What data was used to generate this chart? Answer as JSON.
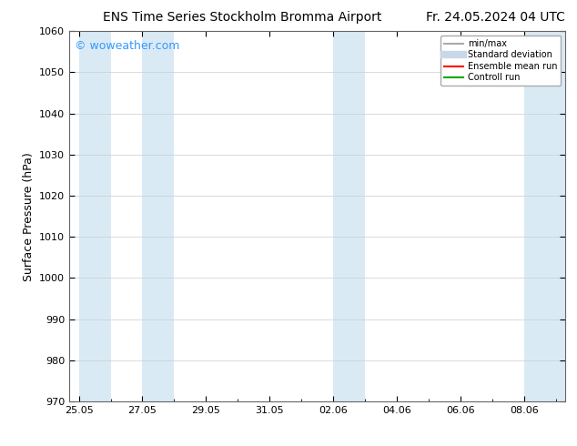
{
  "title_left": "ENS Time Series Stockholm Bromma Airport",
  "title_right": "Fr. 24.05.2024 04 UTC",
  "ylabel": "Surface Pressure (hPa)",
  "ylim": [
    970,
    1060
  ],
  "yticks": [
    970,
    980,
    990,
    1000,
    1010,
    1020,
    1030,
    1040,
    1050,
    1060
  ],
  "x_tick_labels": [
    "25.05",
    "27.05",
    "29.05",
    "31.05",
    "02.06",
    "04.06",
    "06.06",
    "08.06"
  ],
  "x_tick_positions": [
    0,
    2,
    4,
    6,
    8,
    10,
    12,
    14
  ],
  "xlim": [
    -0.3,
    15.3
  ],
  "shaded_bands": [
    {
      "x_start": 0.0,
      "x_end": 1.0
    },
    {
      "x_start": 2.0,
      "x_end": 3.0
    },
    {
      "x_start": 8.0,
      "x_end": 9.0
    },
    {
      "x_start": 14.0,
      "x_end": 15.3
    }
  ],
  "shaded_color": "#daeaf5",
  "background_color": "#ffffff",
  "grid_color": "#cccccc",
  "watermark_text": "© woweather.com",
  "watermark_color": "#3399ff",
  "legend_items": [
    {
      "label": "min/max",
      "color": "#aaaaaa",
      "lw": 1.5,
      "style": "solid"
    },
    {
      "label": "Standard deviation",
      "color": "#c8d8e8",
      "lw": 6,
      "style": "solid"
    },
    {
      "label": "Ensemble mean run",
      "color": "#ff0000",
      "lw": 1.5,
      "style": "solid"
    },
    {
      "label": "Controll run",
      "color": "#00aa00",
      "lw": 1.5,
      "style": "solid"
    }
  ],
  "title_fontsize": 10,
  "axis_fontsize": 9,
  "tick_fontsize": 8,
  "watermark_fontsize": 9
}
